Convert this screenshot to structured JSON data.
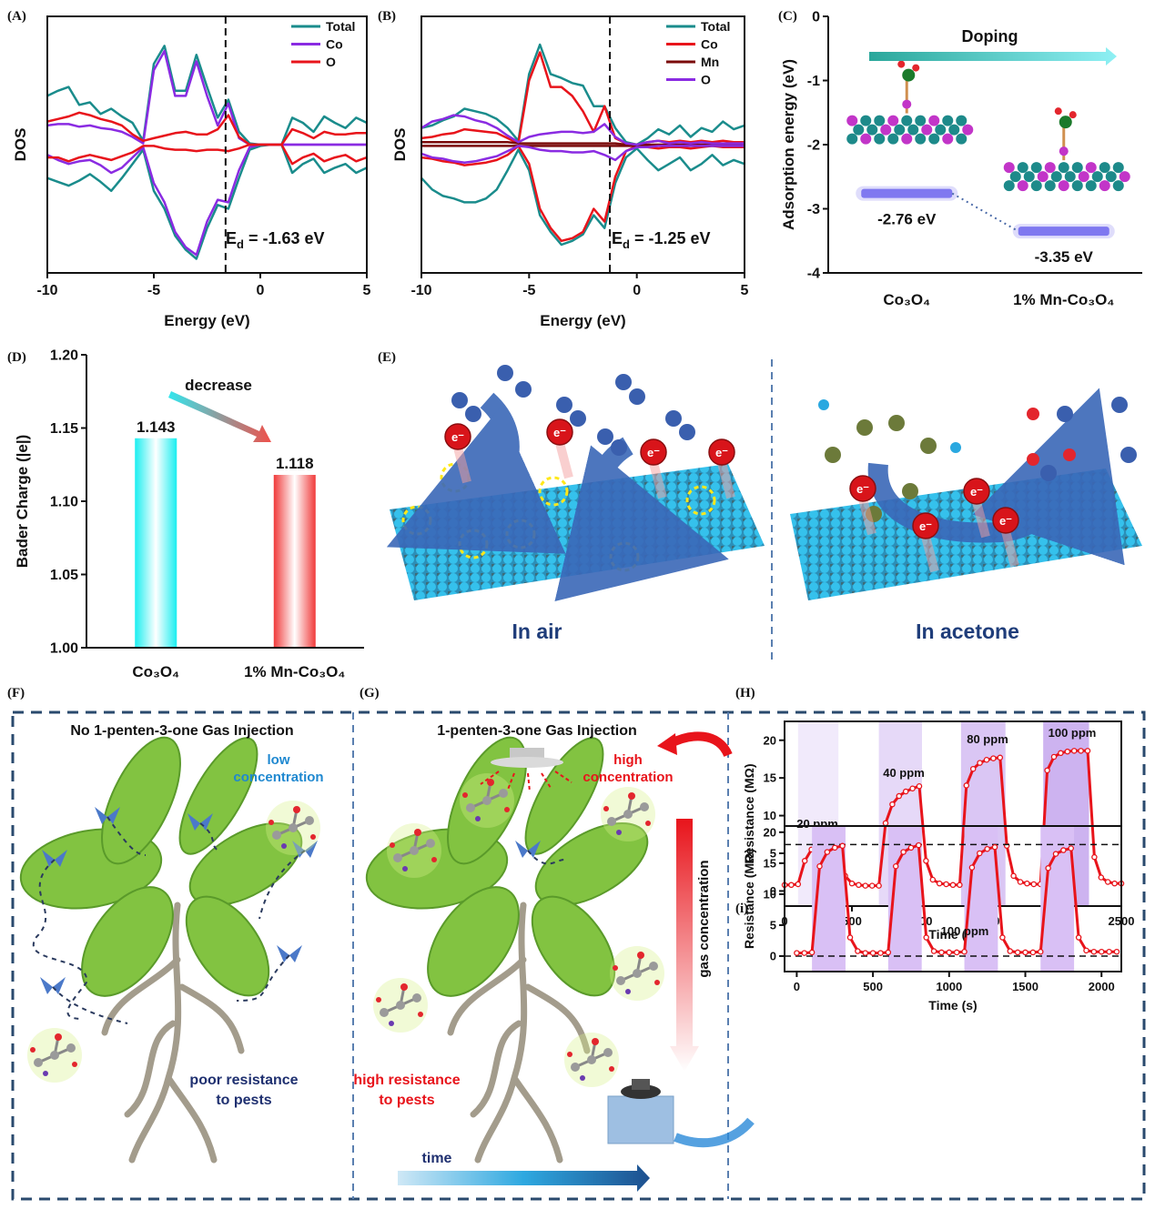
{
  "chart_data": [
    {
      "type": "line",
      "panel_label": "(A)",
      "ylabel": "DOS",
      "xlabel": "Energy (eV)",
      "x": [
        -10,
        -9.5,
        -9,
        -8.5,
        -8,
        -7.5,
        -7,
        -6.5,
        -6,
        -5.5,
        -5,
        -4.5,
        -4,
        -3.5,
        -3,
        -2.5,
        -2,
        -1.5,
        -1,
        -0.5,
        0,
        0.5,
        1,
        1.5,
        2,
        2.5,
        3,
        3.5,
        4,
        4.5,
        5
      ],
      "xlim": [
        -10,
        5
      ],
      "xticks": [
        -10,
        -5,
        0,
        5
      ],
      "ylim": [
        -10,
        10
      ],
      "legend": "upper right",
      "vline": -1.63,
      "vline_label": {
        "symbol": "E",
        "sub": "d",
        "text": " = -1.63 eV"
      },
      "series": [
        {
          "name": "Total",
          "color": "#1a8c8c",
          "values": [
            3.8,
            4.2,
            4.5,
            3.1,
            3.3,
            2.4,
            2.8,
            2.2,
            1.7,
            0.3,
            6.3,
            7.7,
            4.2,
            4.2,
            7.0,
            4.5,
            2.1,
            3.5,
            1.0,
            0.1,
            0,
            0,
            0,
            2.1,
            1.7,
            1.0,
            2.2,
            1.7,
            1.3,
            2.1,
            1.7
          ],
          "values_down": [
            -2.6,
            -2.9,
            -3.2,
            -2.8,
            -2.3,
            -2.9,
            -3.6,
            -2.6,
            -1.5,
            -0.4,
            -3.6,
            -5.0,
            -7.1,
            -8.2,
            -8.9,
            -6.5,
            -4.7,
            -5.0,
            -2.6,
            -0.4,
            -0.1,
            0,
            0,
            -2.2,
            -1.5,
            -1.1,
            -2.2,
            -1.8,
            -1.5,
            -2.2,
            -1.8
          ]
        },
        {
          "name": "Co",
          "color": "#8a2be2",
          "values": [
            1.5,
            1.6,
            1.6,
            1.4,
            1.5,
            1.3,
            1.2,
            1.0,
            0.6,
            0.1,
            5.8,
            7.3,
            3.8,
            3.8,
            6.5,
            3.8,
            1.5,
            3.2,
            0.5,
            0,
            0,
            0,
            0,
            0,
            0,
            0,
            0,
            0,
            0,
            0,
            0
          ],
          "values_down": [
            -0.8,
            -1.2,
            -1.5,
            -1.3,
            -1.2,
            -1.6,
            -2.2,
            -1.8,
            -1.0,
            -0.2,
            -3.0,
            -4.5,
            -6.8,
            -8.0,
            -8.6,
            -6.0,
            -4.3,
            -4.5,
            -2.0,
            -0.2,
            0,
            0,
            0,
            0,
            0,
            0,
            0,
            0,
            0,
            0,
            0
          ]
        },
        {
          "name": "O",
          "color": "#e8141b",
          "values": [
            1.8,
            2.0,
            2.2,
            2.5,
            2.3,
            2.0,
            1.8,
            1.5,
            0.8,
            0.3,
            0.5,
            0.7,
            0.9,
            1.0,
            0.8,
            0.8,
            1.2,
            2.3,
            0.6,
            0,
            0,
            0,
            0,
            1.2,
            0.9,
            0.5,
            1.0,
            0.8,
            0.8,
            0.9,
            0.9
          ],
          "values_down": [
            -1.0,
            -1.0,
            -1.3,
            -1.0,
            -0.8,
            -1.0,
            -1.2,
            -0.9,
            -0.6,
            -0.1,
            -0.1,
            -0.3,
            -0.4,
            -0.4,
            -0.5,
            -0.4,
            -0.4,
            -0.5,
            -0.3,
            0,
            0,
            0,
            0,
            -1.5,
            -1.0,
            -0.7,
            -1.3,
            -1.0,
            -0.8,
            -1.3,
            -1.0
          ]
        }
      ]
    },
    {
      "type": "line",
      "panel_label": "(B)",
      "ylabel": "DOS",
      "xlabel": "Energy (eV)",
      "x": [
        -10,
        -9.5,
        -9,
        -8.5,
        -8,
        -7.5,
        -7,
        -6.5,
        -6,
        -5.5,
        -5,
        -4.5,
        -4,
        -3.5,
        -3,
        -2.5,
        -2,
        -1.5,
        -1,
        -0.5,
        0,
        0.5,
        1,
        1.5,
        2,
        2.5,
        3,
        3.5,
        4,
        4.5,
        5
      ],
      "xlim": [
        -10,
        5
      ],
      "xticks": [
        -10,
        -5,
        0,
        5
      ],
      "ylim": [
        -10,
        10
      ],
      "legend": "upper right",
      "vline": -1.25,
      "vline_label": {
        "symbol": "E",
        "sub": "d",
        "text": " = -1.25 eV"
      },
      "series": [
        {
          "name": "Total",
          "color": "#1a8c8c",
          "values": [
            1.3,
            1.5,
            1.9,
            2.2,
            2.8,
            2.6,
            2.4,
            2.0,
            1.3,
            0.3,
            5.5,
            7.8,
            5.5,
            5.2,
            4.8,
            4.6,
            3.0,
            3.0,
            1.3,
            0.2,
            0,
            0.5,
            1.2,
            0.8,
            1.5,
            0.6,
            1.3,
            1.0,
            1.8,
            1.2,
            1.5
          ],
          "values_down": [
            -2.6,
            -3.5,
            -4.0,
            -4.2,
            -4.5,
            -4.5,
            -4.2,
            -3.5,
            -2.0,
            -0.4,
            -2.0,
            -5.5,
            -6.8,
            -7.8,
            -7.5,
            -7.0,
            -5.5,
            -6.5,
            -3.0,
            -1.0,
            -0.3,
            -1.2,
            -2.0,
            -1.5,
            -1.0,
            -2.0,
            -1.5,
            -0.8,
            -1.6,
            -1.2,
            -1.5
          ]
        },
        {
          "name": "Co",
          "color": "#e8141b",
          "values": [
            0.5,
            0.6,
            0.8,
            0.9,
            1.2,
            1.1,
            1.0,
            0.9,
            0.5,
            0.1,
            5.0,
            7.2,
            4.5,
            4.5,
            3.8,
            2.6,
            1.0,
            3.0,
            0.5,
            0.1,
            0,
            0.2,
            0.3,
            0.2,
            0.3,
            0.2,
            0.3,
            0.2,
            0.3,
            0.2,
            0.2
          ],
          "values_down": [
            -1.0,
            -1.1,
            -1.3,
            -1.4,
            -1.6,
            -1.5,
            -1.4,
            -1.2,
            -0.8,
            -0.1,
            -1.5,
            -5.0,
            -6.5,
            -7.5,
            -7.3,
            -6.8,
            -5.0,
            -6.0,
            -2.5,
            -0.5,
            -0.1,
            -0.2,
            -0.3,
            -0.2,
            -0.2,
            -0.3,
            -0.2,
            -0.1,
            -0.2,
            -0.2,
            -0.2
          ]
        },
        {
          "name": "Mn",
          "color": "#7a0a0a",
          "values": [
            0.2,
            0.2,
            0.2,
            0.2,
            0.2,
            0.2,
            0.2,
            0.2,
            0.2,
            0.1,
            0.1,
            0.1,
            0.1,
            0.1,
            0.1,
            0.1,
            0.1,
            0.1,
            0.1,
            0,
            0,
            0,
            0,
            0,
            0,
            0,
            0,
            0,
            0,
            0,
            0
          ],
          "values_down": [
            -0.1,
            -0.1,
            -0.1,
            -0.1,
            -0.1,
            -0.1,
            -0.1,
            -0.1,
            -0.1,
            -0.1,
            -0.1,
            -0.1,
            -0.1,
            -0.1,
            -0.1,
            -0.1,
            -0.1,
            -0.1,
            -0.1,
            -0.1,
            -0.1,
            -0.1,
            -0.1,
            -0.1,
            -0.1,
            -0.1,
            -0.1,
            -0.1,
            -0.1,
            -0.1,
            -0.1
          ]
        },
        {
          "name": "O",
          "color": "#8a2be2",
          "values": [
            1.3,
            1.8,
            2.0,
            2.3,
            2.2,
            1.9,
            1.7,
            1.3,
            0.7,
            0.2,
            0.6,
            0.8,
            0.9,
            1.0,
            1.0,
            0.9,
            1.0,
            1.6,
            0.6,
            0.1,
            0,
            0.2,
            0.3,
            0.1,
            0.2,
            0.1,
            0.2,
            0.1,
            0.1,
            0.1,
            0.1
          ],
          "values_down": [
            -0.7,
            -1.0,
            -1.1,
            -1.3,
            -1.4,
            -1.3,
            -1.1,
            -0.9,
            -0.5,
            -0.1,
            -0.2,
            -0.4,
            -0.5,
            -0.5,
            -0.6,
            -0.6,
            -0.5,
            -0.8,
            -1.2,
            -0.5,
            -0.2,
            -0.2,
            -0.1,
            -0.1,
            -0.1,
            -0.1,
            -0.1,
            -0.1,
            -0.1,
            -0.1,
            -0.1
          ]
        }
      ]
    },
    {
      "type": "level",
      "panel_label": "(C)",
      "ylabel": "Adsorption energy (eV)",
      "categories": [
        "Co₃O₄",
        "1% Mn-Co₃O₄"
      ],
      "values": [
        -2.76,
        -3.35
      ],
      "value_labels": [
        "-2.76 eV",
        "-3.35 eV"
      ],
      "color": "#7f78f0",
      "ylim": [
        -4,
        0
      ],
      "yticks": [
        -4,
        -3,
        -2,
        -1,
        0
      ],
      "annotation": "Doping"
    },
    {
      "type": "bar",
      "panel_label": "(D)",
      "ylabel": "Bader Charge (|e|)",
      "categories": [
        "Co₃O₄",
        "1% Mn-Co₃O₄"
      ],
      "values": [
        1.143,
        1.118
      ],
      "colors": [
        "#19eef0",
        "#f03a3a"
      ],
      "ylim": [
        1,
        1.2
      ],
      "yticks": [
        {
          "value": 1,
          "label": "1.00"
        },
        1.05,
        {
          "value": 1.1,
          "label": "1.10"
        },
        1.15,
        {
          "value": 1.2,
          "label": "1.20"
        }
      ],
      "annotation": "decrease"
    },
    {
      "type": "line",
      "panel_label": "(H)",
      "ylabel": "Resistance (MΩ)",
      "xlabel": "Time (s)",
      "x": [
        0,
        50,
        100,
        150,
        200,
        250,
        300,
        350,
        400,
        450,
        500,
        550,
        600,
        650,
        700,
        750,
        800,
        850,
        900,
        950,
        1000,
        1050,
        1100,
        1150,
        1200,
        1250,
        1300,
        1350,
        1400,
        1450,
        1500,
        1550,
        1600,
        1650,
        1700,
        1750,
        1800,
        1850,
        1900,
        1950,
        2000,
        2050,
        2100,
        2150,
        2200,
        2250,
        2300,
        2350,
        2400,
        2450,
        2500
      ],
      "xlim": [
        0,
        2500
      ],
      "xticks": [
        0,
        500,
        1000,
        1500,
        2000,
        2500
      ],
      "ylim": [
        -2,
        22.5
      ],
      "yticks": [
        0,
        5,
        10,
        15,
        20
      ],
      "bands": [
        [
          100,
          400
        ],
        [
          700,
          1020
        ],
        [
          1310,
          1640
        ],
        [
          1920,
          2260
        ]
      ],
      "band_colors": [
        "#f1eafb",
        "#e6d9f8",
        "#dac6f4",
        "#cdb3f0"
      ],
      "band_labels": [
        "20 ppm",
        "40 ppm",
        "80 ppm",
        "100 ppm"
      ],
      "series": [
        {
          "color": "#e8141b",
          "markers": true,
          "values": [
            0.8,
            0.8,
            0.9,
            4.0,
            5.5,
            6.2,
            6.7,
            7.0,
            7.2,
            2.0,
            1.0,
            0.8,
            0.7,
            0.7,
            0.7,
            9.0,
            11.5,
            12.6,
            13.2,
            13.6,
            13.9,
            4.0,
            1.5,
            1.0,
            0.9,
            0.8,
            0.8,
            14.0,
            16.2,
            17.0,
            17.4,
            17.6,
            17.7,
            6.0,
            2.0,
            1.2,
            1.0,
            0.9,
            0.9,
            16.0,
            17.8,
            18.3,
            18.5,
            18.6,
            18.6,
            18.6,
            4.5,
            1.8,
            1.2,
            1.0,
            1.0
          ]
        }
      ]
    },
    {
      "type": "line",
      "panel_label": "(i)",
      "ylabel": "Resistance (MΩ)",
      "xlabel": "Time (s)",
      "x": [
        0,
        50,
        100,
        150,
        200,
        250,
        300,
        350,
        400,
        450,
        500,
        550,
        600,
        650,
        700,
        750,
        800,
        850,
        900,
        950,
        1000,
        1050,
        1100,
        1150,
        1200,
        1250,
        1300,
        1350,
        1400,
        1450,
        1500,
        1550,
        1600,
        1650,
        1700,
        1750,
        1800,
        1850,
        1900,
        1950,
        2000,
        2050,
        2100
      ],
      "xlim": [
        -80,
        2130
      ],
      "xticks": [
        0,
        500,
        1000,
        1500,
        2000
      ],
      "ylim": [
        -2.5,
        21
      ],
      "yticks": [
        0,
        5,
        10,
        15,
        20
      ],
      "bands": [
        [
          100,
          320
        ],
        [
          600,
          820
        ],
        [
          1100,
          1320
        ],
        [
          1600,
          1820
        ]
      ],
      "band_colors": [
        "#d9c0f5",
        "#d9c0f5",
        "#d9c0f5",
        "#d9c0f5"
      ],
      "hlines": [
        18,
        0
      ],
      "annotation": "100 ppm",
      "series": [
        {
          "color": "#e8141b",
          "markers": true,
          "values": [
            0.5,
            0.5,
            0.6,
            14.5,
            16.8,
            17.5,
            17.8,
            3.0,
            0.8,
            0.5,
            0.5,
            0.5,
            0.6,
            14.5,
            16.8,
            17.5,
            17.9,
            3.0,
            0.8,
            0.6,
            0.6,
            0.6,
            0.7,
            14.3,
            16.6,
            17.3,
            17.6,
            3.0,
            0.8,
            0.6,
            0.6,
            0.6,
            0.7,
            14.2,
            16.5,
            17.1,
            17.4,
            3.0,
            0.9,
            0.7,
            0.7,
            0.7,
            0.7
          ]
        }
      ]
    }
  ],
  "panels": {
    "E": {
      "label": "(E)",
      "captions": [
        "In air",
        "In acetone"
      ],
      "electron": "e⁻"
    },
    "F": {
      "label": "(F)",
      "title": "No 1-penten-3-one Gas Injection",
      "note": [
        "low",
        "concentration"
      ],
      "caption": [
        "poor resistance",
        "to pests"
      ]
    },
    "G": {
      "label": "(G)",
      "title": "1-penten-3-one Gas Injection",
      "note": [
        "high",
        "concentration"
      ],
      "arrow_label": "gas concentration",
      "caption": [
        "high resistance",
        "to pests"
      ],
      "time_label": "time"
    }
  }
}
